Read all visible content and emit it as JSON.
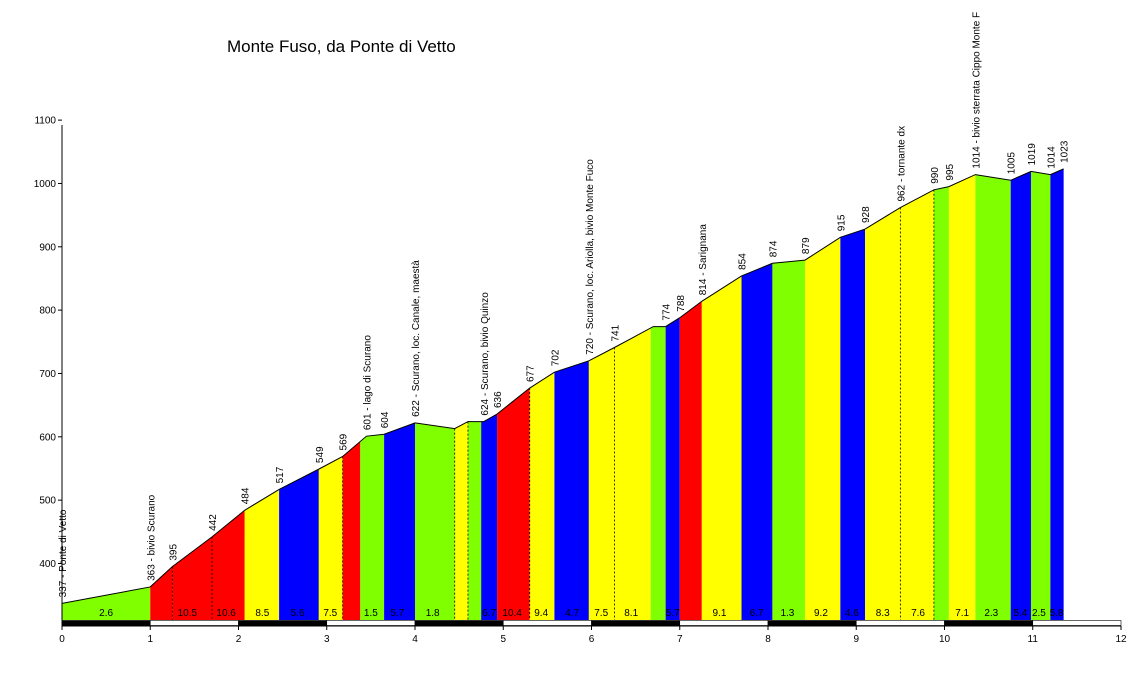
{
  "chart_data": {
    "type": "area",
    "title": "Monte Fuso, da Ponte di Vetto",
    "xlabel": "",
    "ylabel": "",
    "xlim": [
      0,
      12
    ],
    "ylim": [
      310,
      1100
    ],
    "xticks": [
      "0",
      "1",
      "2",
      "3",
      "4",
      "5",
      "6",
      "7",
      "8",
      "9",
      "10",
      "11",
      "12"
    ],
    "yticks": [
      "400",
      "500",
      "600",
      "700",
      "800",
      "900",
      "1000",
      "1100"
    ],
    "profile": [
      {
        "x": 0.0,
        "y": 337
      },
      {
        "x": 1.0,
        "y": 363
      },
      {
        "x": 1.25,
        "y": 395
      },
      {
        "x": 1.7,
        "y": 442
      },
      {
        "x": 2.07,
        "y": 484
      },
      {
        "x": 2.46,
        "y": 517
      },
      {
        "x": 2.91,
        "y": 549
      },
      {
        "x": 3.18,
        "y": 569
      },
      {
        "x": 3.45,
        "y": 601
      },
      {
        "x": 3.65,
        "y": 604
      },
      {
        "x": 4.0,
        "y": 622
      },
      {
        "x": 4.45,
        "y": 613
      },
      {
        "x": 4.6,
        "y": 624
      },
      {
        "x": 4.78,
        "y": 624
      },
      {
        "x": 4.93,
        "y": 636
      },
      {
        "x": 5.3,
        "y": 677
      },
      {
        "x": 5.58,
        "y": 702
      },
      {
        "x": 5.97,
        "y": 720
      },
      {
        "x": 6.26,
        "y": 741
      },
      {
        "x": 6.7,
        "y": 774
      },
      {
        "x": 6.84,
        "y": 774
      },
      {
        "x": 7.0,
        "y": 788
      },
      {
        "x": 7.25,
        "y": 814
      },
      {
        "x": 7.7,
        "y": 854
      },
      {
        "x": 8.05,
        "y": 874
      },
      {
        "x": 8.42,
        "y": 879
      },
      {
        "x": 8.82,
        "y": 915
      },
      {
        "x": 9.1,
        "y": 928
      },
      {
        "x": 9.5,
        "y": 962
      },
      {
        "x": 9.88,
        "y": 990
      },
      {
        "x": 10.05,
        "y": 995
      },
      {
        "x": 10.35,
        "y": 1014
      },
      {
        "x": 10.75,
        "y": 1005
      },
      {
        "x": 10.98,
        "y": 1019
      },
      {
        "x": 11.2,
        "y": 1014
      },
      {
        "x": 11.35,
        "y": 1023
      }
    ],
    "elevation_labels": [
      {
        "x": 0.0,
        "y": 337,
        "text": "337 - Ponte di Vetto"
      },
      {
        "x": 1.0,
        "y": 363,
        "text": "363 - bivio Scurano"
      },
      {
        "x": 1.25,
        "y": 395,
        "text": "395"
      },
      {
        "x": 1.7,
        "y": 442,
        "text": "442"
      },
      {
        "x": 2.07,
        "y": 484,
        "text": "484"
      },
      {
        "x": 2.46,
        "y": 517,
        "text": "517"
      },
      {
        "x": 2.91,
        "y": 549,
        "text": "549"
      },
      {
        "x": 3.18,
        "y": 569,
        "text": "569"
      },
      {
        "x": 3.45,
        "y": 601,
        "text": "601 - lago di Scurano"
      },
      {
        "x": 3.65,
        "y": 604,
        "text": "604"
      },
      {
        "x": 4.0,
        "y": 622,
        "text": "622 - Scurano, loc. Canale, maestà"
      },
      {
        "x": 4.78,
        "y": 624,
        "text": "624 - Scurano, bivio Quinzo"
      },
      {
        "x": 4.93,
        "y": 636,
        "text": "636"
      },
      {
        "x": 5.3,
        "y": 677,
        "text": "677"
      },
      {
        "x": 5.58,
        "y": 702,
        "text": "702"
      },
      {
        "x": 5.97,
        "y": 720,
        "text": "720 - Scurano, loc. Ariolla, bivio Monte Fuco"
      },
      {
        "x": 6.26,
        "y": 741,
        "text": "741"
      },
      {
        "x": 6.84,
        "y": 774,
        "text": "774"
      },
      {
        "x": 7.0,
        "y": 788,
        "text": "788"
      },
      {
        "x": 7.25,
        "y": 814,
        "text": "814 - Sarignana"
      },
      {
        "x": 7.7,
        "y": 854,
        "text": "854"
      },
      {
        "x": 8.05,
        "y": 874,
        "text": "874"
      },
      {
        "x": 8.42,
        "y": 879,
        "text": "879"
      },
      {
        "x": 8.82,
        "y": 915,
        "text": "915"
      },
      {
        "x": 9.1,
        "y": 928,
        "text": "928"
      },
      {
        "x": 9.5,
        "y": 962,
        "text": "962 - tornante dx"
      },
      {
        "x": 9.88,
        "y": 990,
        "text": "990"
      },
      {
        "x": 10.05,
        "y": 995,
        "text": "995"
      },
      {
        "x": 10.35,
        "y": 1014,
        "text": "1014 - bivio sterrata Cippo Monte F"
      },
      {
        "x": 10.75,
        "y": 1005,
        "text": "1005"
      },
      {
        "x": 10.98,
        "y": 1019,
        "text": "1019"
      },
      {
        "x": 11.2,
        "y": 1014,
        "text": "1014"
      },
      {
        "x": 11.35,
        "y": 1023,
        "text": "1023"
      }
    ],
    "segments": [
      {
        "x0": 0.0,
        "x1": 1.0,
        "color": "#80ff00",
        "label": "2.6",
        "labelx": 0.5
      },
      {
        "x0": 1.0,
        "x1": 1.25,
        "color": "#ff0000",
        "label": "",
        "labelx": 0
      },
      {
        "x0": 1.25,
        "x1": 1.7,
        "color": "#ff0000",
        "label": "10.5",
        "labelx": 1.42
      },
      {
        "x0": 1.7,
        "x1": 2.07,
        "color": "#ff0000",
        "label": "10.6",
        "labelx": 1.86
      },
      {
        "x0": 2.07,
        "x1": 2.46,
        "color": "#ffff00",
        "label": "8.5",
        "labelx": 2.27
      },
      {
        "x0": 2.46,
        "x1": 2.91,
        "color": "#0000ff",
        "label": "5.6",
        "labelx": 2.67
      },
      {
        "x0": 2.91,
        "x1": 3.18,
        "color": "#ffff00",
        "label": "7.5",
        "labelx": 3.04
      },
      {
        "x0": 3.18,
        "x1": 3.38,
        "color": "#ff0000",
        "label": "",
        "labelx": 0
      },
      {
        "x0": 3.38,
        "x1": 3.65,
        "color": "#80ff00",
        "label": "1.5",
        "labelx": 3.5
      },
      {
        "x0": 3.65,
        "x1": 4.0,
        "color": "#0000ff",
        "label": "5.7",
        "labelx": 3.8
      },
      {
        "x0": 4.0,
        "x1": 4.45,
        "color": "#80ff00",
        "label": "1.8",
        "labelx": 4.2
      },
      {
        "x0": 4.45,
        "x1": 4.6,
        "color": "#ffff00",
        "label": "",
        "labelx": 0
      },
      {
        "x0": 4.6,
        "x1": 4.75,
        "color": "#80ff00",
        "label": "",
        "labelx": 0
      },
      {
        "x0": 4.75,
        "x1": 4.93,
        "color": "#0000ff",
        "label": "6.7",
        "labelx": 4.84
      },
      {
        "x0": 4.93,
        "x1": 5.3,
        "color": "#ff0000",
        "label": "10.4",
        "labelx": 5.1
      },
      {
        "x0": 5.3,
        "x1": 5.58,
        "color": "#ffff00",
        "label": "9.4",
        "labelx": 5.43
      },
      {
        "x0": 5.58,
        "x1": 5.97,
        "color": "#0000ff",
        "label": "4.7",
        "labelx": 5.78
      },
      {
        "x0": 5.97,
        "x1": 6.26,
        "color": "#ffff00",
        "label": "7.5",
        "labelx": 6.11
      },
      {
        "x0": 6.26,
        "x1": 6.67,
        "color": "#ffff00",
        "label": "8.1",
        "labelx": 6.45
      },
      {
        "x0": 6.67,
        "x1": 6.84,
        "color": "#80ff00",
        "label": "",
        "labelx": 0
      },
      {
        "x0": 6.84,
        "x1": 7.0,
        "color": "#0000ff",
        "label": "5.7",
        "labelx": 6.92
      },
      {
        "x0": 7.0,
        "x1": 7.25,
        "color": "#ff0000",
        "label": "",
        "labelx": 0
      },
      {
        "x0": 7.25,
        "x1": 7.7,
        "color": "#ffff00",
        "label": "9.1",
        "labelx": 7.45
      },
      {
        "x0": 7.7,
        "x1": 8.05,
        "color": "#0000ff",
        "label": "6.7",
        "labelx": 7.87
      },
      {
        "x0": 8.05,
        "x1": 8.42,
        "color": "#80ff00",
        "label": "1.3",
        "labelx": 8.22
      },
      {
        "x0": 8.42,
        "x1": 8.82,
        "color": "#ffff00",
        "label": "9.2",
        "labelx": 8.6
      },
      {
        "x0": 8.82,
        "x1": 9.1,
        "color": "#0000ff",
        "label": "4.6",
        "labelx": 8.95
      },
      {
        "x0": 9.1,
        "x1": 9.5,
        "color": "#ffff00",
        "label": "8.3",
        "labelx": 9.3
      },
      {
        "x0": 9.5,
        "x1": 9.88,
        "color": "#ffff00",
        "label": "7.6",
        "labelx": 9.7
      },
      {
        "x0": 9.88,
        "x1": 10.05,
        "color": "#80ff00",
        "label": "",
        "labelx": 0
      },
      {
        "x0": 10.05,
        "x1": 10.35,
        "color": "#ffff00",
        "label": "7.1",
        "labelx": 10.2
      },
      {
        "x0": 10.35,
        "x1": 10.75,
        "color": "#80ff00",
        "label": "2.3",
        "labelx": 10.53
      },
      {
        "x0": 10.75,
        "x1": 10.98,
        "color": "#0000ff",
        "label": "5.4",
        "labelx": 10.86
      },
      {
        "x0": 10.98,
        "x1": 11.2,
        "color": "#80ff00",
        "label": "2.5",
        "labelx": 11.07
      },
      {
        "x0": 11.2,
        "x1": 11.35,
        "color": "#0000ff",
        "label": "5.8",
        "labelx": 11.27
      }
    ],
    "dashed_x": [
      1.25,
      1.7,
      3.18,
      4.45,
      4.6,
      5.3,
      6.26,
      9.5,
      9.88
    ],
    "distance_bar": [
      {
        "x0": 0,
        "x1": 1,
        "color": "#000000"
      },
      {
        "x0": 1,
        "x1": 2,
        "color": "#ffffff"
      },
      {
        "x0": 2,
        "x1": 3,
        "color": "#000000"
      },
      {
        "x0": 3,
        "x1": 4,
        "color": "#ffffff"
      },
      {
        "x0": 4,
        "x1": 5,
        "color": "#000000"
      },
      {
        "x0": 5,
        "x1": 6,
        "color": "#ffffff"
      },
      {
        "x0": 6,
        "x1": 7,
        "color": "#000000"
      },
      {
        "x0": 7,
        "x1": 8,
        "color": "#ffffff"
      },
      {
        "x0": 8,
        "x1": 9,
        "color": "#000000"
      },
      {
        "x0": 9,
        "x1": 10,
        "color": "#ffffff"
      },
      {
        "x0": 10,
        "x1": 11,
        "color": "#000000"
      },
      {
        "x0": 11,
        "x1": 12,
        "color": "#ffffff"
      }
    ],
    "grid": false,
    "legend": "none"
  }
}
